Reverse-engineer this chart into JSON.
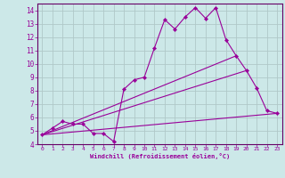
{
  "xlabel": "Windchill (Refroidissement éolien,°C)",
  "background_color": "#cce8e8",
  "grid_color": "#b0c8c8",
  "line_color": "#990099",
  "spine_color": "#660066",
  "xlim": [
    -0.5,
    23.5
  ],
  "ylim": [
    4,
    14.5
  ],
  "xticks": [
    0,
    1,
    2,
    3,
    4,
    5,
    6,
    7,
    8,
    9,
    10,
    11,
    12,
    13,
    14,
    15,
    16,
    17,
    18,
    19,
    20,
    21,
    22,
    23
  ],
  "yticks": [
    4,
    5,
    6,
    7,
    8,
    9,
    10,
    11,
    12,
    13,
    14
  ],
  "series_main": {
    "x": [
      0,
      1,
      2,
      3,
      4,
      5,
      6,
      7,
      8,
      9,
      10,
      11,
      12,
      13,
      14,
      15,
      16,
      17,
      18,
      19,
      20,
      21,
      22,
      23
    ],
    "y": [
      4.7,
      5.2,
      5.7,
      5.5,
      5.5,
      4.8,
      4.8,
      4.2,
      8.1,
      8.8,
      9.0,
      11.2,
      13.3,
      12.6,
      13.5,
      14.2,
      13.4,
      14.2,
      11.8,
      10.6,
      9.5,
      8.2,
      6.5,
      6.3
    ]
  },
  "series_lines": [
    {
      "x": [
        0,
        19
      ],
      "y": [
        4.7,
        10.6
      ]
    },
    {
      "x": [
        0,
        20
      ],
      "y": [
        4.7,
        9.5
      ]
    },
    {
      "x": [
        0,
        23
      ],
      "y": [
        4.7,
        6.3
      ]
    }
  ]
}
